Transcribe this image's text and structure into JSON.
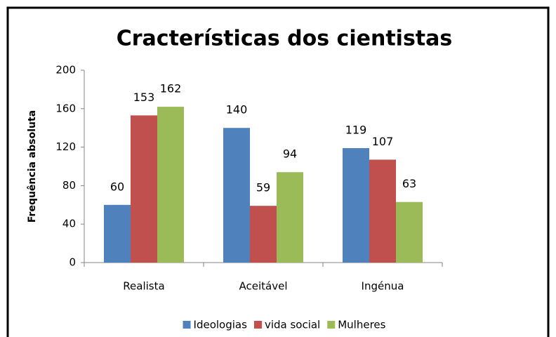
{
  "chart_data": {
    "type": "bar",
    "title": "Cracterísticas dos cientistas",
    "ylabel": "Frequência absoluta",
    "categories": [
      "Realista",
      "Aceitável",
      "Ingénua"
    ],
    "series": [
      {
        "name": "Ideologias",
        "color": "#4f81bd",
        "values": [
          60,
          140,
          119
        ]
      },
      {
        "name": "vida social",
        "color": "#c0504d",
        "values": [
          153,
          59,
          107
        ]
      },
      {
        "name": "Mulheres",
        "color": "#9bbb59",
        "values": [
          162,
          94,
          63
        ]
      }
    ],
    "ylim": [
      0,
      200
    ],
    "yticks": [
      0,
      40,
      80,
      120,
      160,
      200
    ],
    "grid": false,
    "legend": "bottom",
    "data_labels": true
  }
}
